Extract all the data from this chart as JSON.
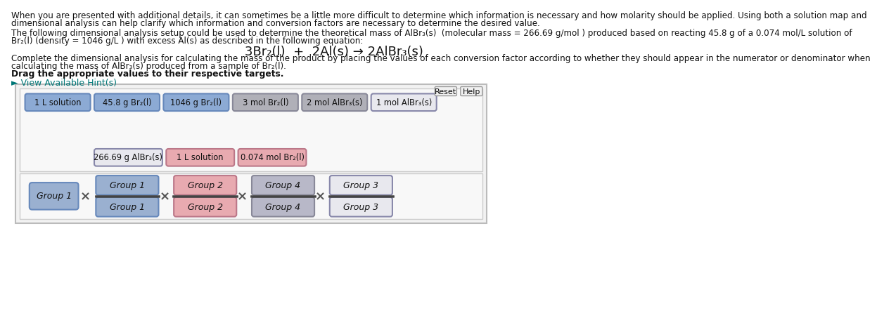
{
  "title_text1": "When you are presented with additional details, it can sometimes be a little more difficult to determine which information is necessary and how molarity should be applied. Using both a solution map and",
  "title_text2": "dimensional analysis can help clarify which information and conversion factors are necessary to determine the desired value.",
  "para1_text": "The following dimensional analysis setup could be used to determine the theoretical mass of AlBr₃(s)  (molecular mass = 266.69 g/mol ) produced based on reacting 45.8 g of a 0.074 mol/L solution of",
  "para1_text2": "Br₂(l) (density = 1046 g/L ) with excess Al(s) as described in the following equation:",
  "equation": "3Br₂(l)  +  2Al(s) → 2AlBr₃(s)",
  "para2_text": "Complete the dimensional analysis for calculating the mass of the product by placing the values of each conversion factor according to whether they should appear in the numerator or denominator when",
  "para2_text2": "calculating the mass of AlBr₃(s) produced from a sample of Br₂(l).",
  "bold_text": "Drag the appropriate values to their respective targets.",
  "hint_text": "► View Available Hint(s)",
  "reset_text": "Reset",
  "help_text": "Help",
  "row1_items": [
    {
      "text": "1 L solution",
      "facecolor": "#8caad4",
      "edgecolor": "#6688bb"
    },
    {
      "text": "45.8 g Br₂(l)",
      "facecolor": "#8caad4",
      "edgecolor": "#6688bb"
    },
    {
      "text": "1046 g Br₂(l)",
      "facecolor": "#8caad4",
      "edgecolor": "#6688bb"
    },
    {
      "text": "3 mol Br₂(l)",
      "facecolor": "#b0b0b8",
      "edgecolor": "#888898"
    },
    {
      "text": "2 mol AlBr₃(s)",
      "facecolor": "#b0b0b8",
      "edgecolor": "#888898"
    },
    {
      "text": "1 mol AlBr₃(s)",
      "facecolor": "#e8e8ee",
      "edgecolor": "#8888aa"
    }
  ],
  "row2_items": [
    {
      "text": "266.69 g AlBr₃(s)",
      "facecolor": "#e8e8ee",
      "edgecolor": "#8888aa"
    },
    {
      "text": "1 L solution",
      "facecolor": "#e8aab0",
      "edgecolor": "#bb7788"
    },
    {
      "text": "0.074 mol Br₂(l)",
      "facecolor": "#e8aab0",
      "edgecolor": "#bb7788"
    }
  ],
  "group1_color": "#9ab0d0",
  "group1_edge": "#6688bb",
  "frac_groups": [
    {
      "label": "Group 1",
      "facecolor": "#9ab0d0",
      "edgecolor": "#6688bb"
    },
    {
      "label": "Group 2",
      "facecolor": "#e8aab0",
      "edgecolor": "#bb7788"
    },
    {
      "label": "Group 4",
      "facecolor": "#b8b8c8",
      "edgecolor": "#888898"
    },
    {
      "label": "Group 3",
      "facecolor": "#e8e8ee",
      "edgecolor": "#8888aa"
    }
  ]
}
